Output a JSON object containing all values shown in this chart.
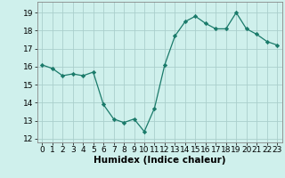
{
  "x": [
    0,
    1,
    2,
    3,
    4,
    5,
    6,
    7,
    8,
    9,
    10,
    11,
    12,
    13,
    14,
    15,
    16,
    17,
    18,
    19,
    20,
    21,
    22,
    23
  ],
  "y": [
    16.1,
    15.9,
    15.5,
    15.6,
    15.5,
    15.7,
    13.9,
    13.1,
    12.9,
    13.1,
    12.4,
    13.7,
    16.1,
    17.7,
    18.5,
    18.8,
    18.4,
    18.1,
    18.1,
    19.0,
    18.1,
    17.8,
    17.4,
    17.2
  ],
  "xlabel": "Humidex (Indice chaleur)",
  "xlim": [
    -0.5,
    23.5
  ],
  "ylim": [
    11.8,
    19.6
  ],
  "yticks": [
    12,
    13,
    14,
    15,
    16,
    17,
    18,
    19
  ],
  "xticks": [
    0,
    1,
    2,
    3,
    4,
    5,
    6,
    7,
    8,
    9,
    10,
    11,
    12,
    13,
    14,
    15,
    16,
    17,
    18,
    19,
    20,
    21,
    22,
    23
  ],
  "line_color": "#1a7a6a",
  "marker": "D",
  "marker_size": 2.2,
  "bg_color": "#cff0ec",
  "grid_color": "#aacfcc",
  "tick_label_fontsize": 6.5,
  "xlabel_fontsize": 7.5
}
